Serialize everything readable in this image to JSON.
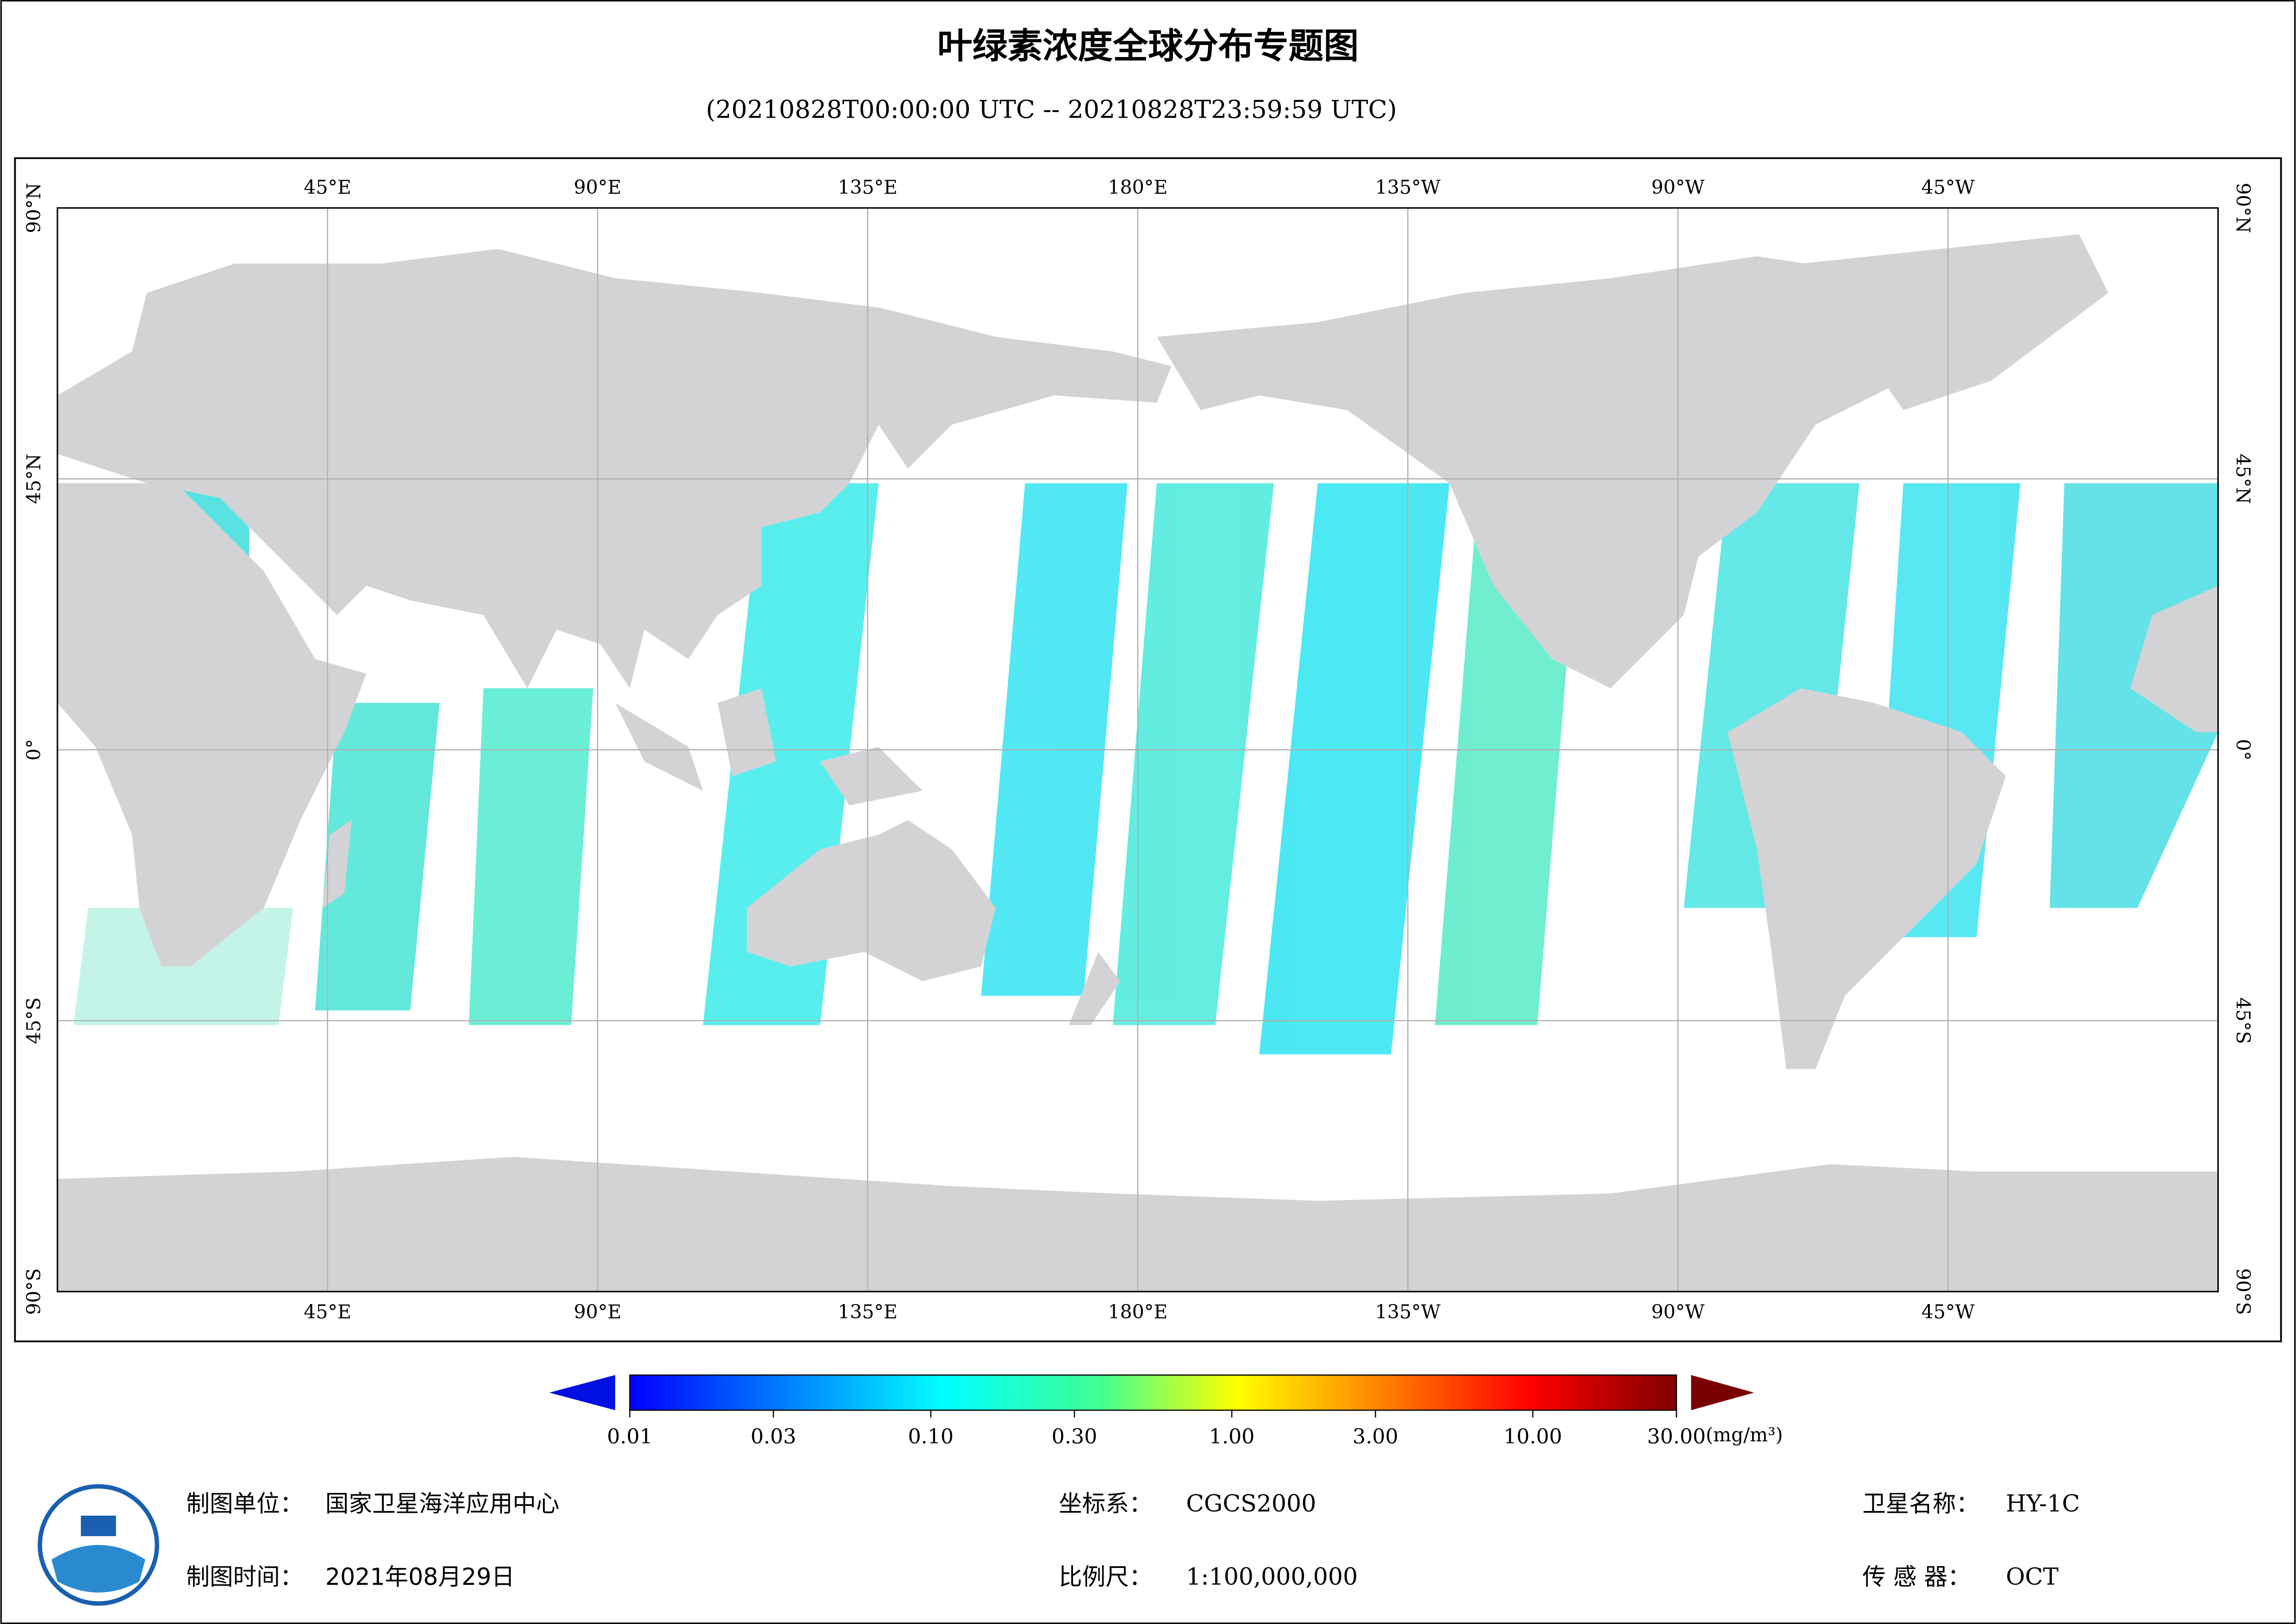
{
  "header": {
    "title": "叶绿素浓度全球分布专题图",
    "subtitle": "(20210828T00:00:00 UTC -- 20210828T23:59:59 UTC)"
  },
  "map": {
    "lon_labels": [
      "45°E",
      "90°E",
      "135°E",
      "180°E",
      "135°W",
      "90°W",
      "45°W"
    ],
    "lat_labels": [
      "90°N",
      "45°N",
      "0°",
      "45°S",
      "90°S"
    ]
  },
  "colorbar": {
    "scale": "log",
    "range": [
      0.01,
      30
    ],
    "ticks": [
      {
        "value": 0.01,
        "label": "0.01"
      },
      {
        "value": 0.03,
        "label": "0.03"
      },
      {
        "value": 0.1,
        "label": "0.10"
      },
      {
        "value": 0.3,
        "label": "0.30"
      },
      {
        "value": 1,
        "label": "1.00"
      },
      {
        "value": 3,
        "label": "3.00"
      },
      {
        "value": 10,
        "label": "10.00"
      },
      {
        "value": 30,
        "label": "30.00"
      }
    ],
    "unit": "(mg/m³)"
  },
  "footer": {
    "unit": {
      "label": "制图单位：",
      "value": "国家卫星海洋应用中心"
    },
    "date": {
      "label": "制图时间：",
      "value": "2021年08月29日"
    },
    "crs": {
      "label": "坐标系：",
      "value": "CGCS2000"
    },
    "scale": {
      "label": "比例尺：",
      "value": "1:100,000,000"
    },
    "satellite": {
      "label": "卫星名称：",
      "value": "HY-1C"
    },
    "sensor": {
      "label": "传 感 器：",
      "value": "OCT"
    }
  }
}
